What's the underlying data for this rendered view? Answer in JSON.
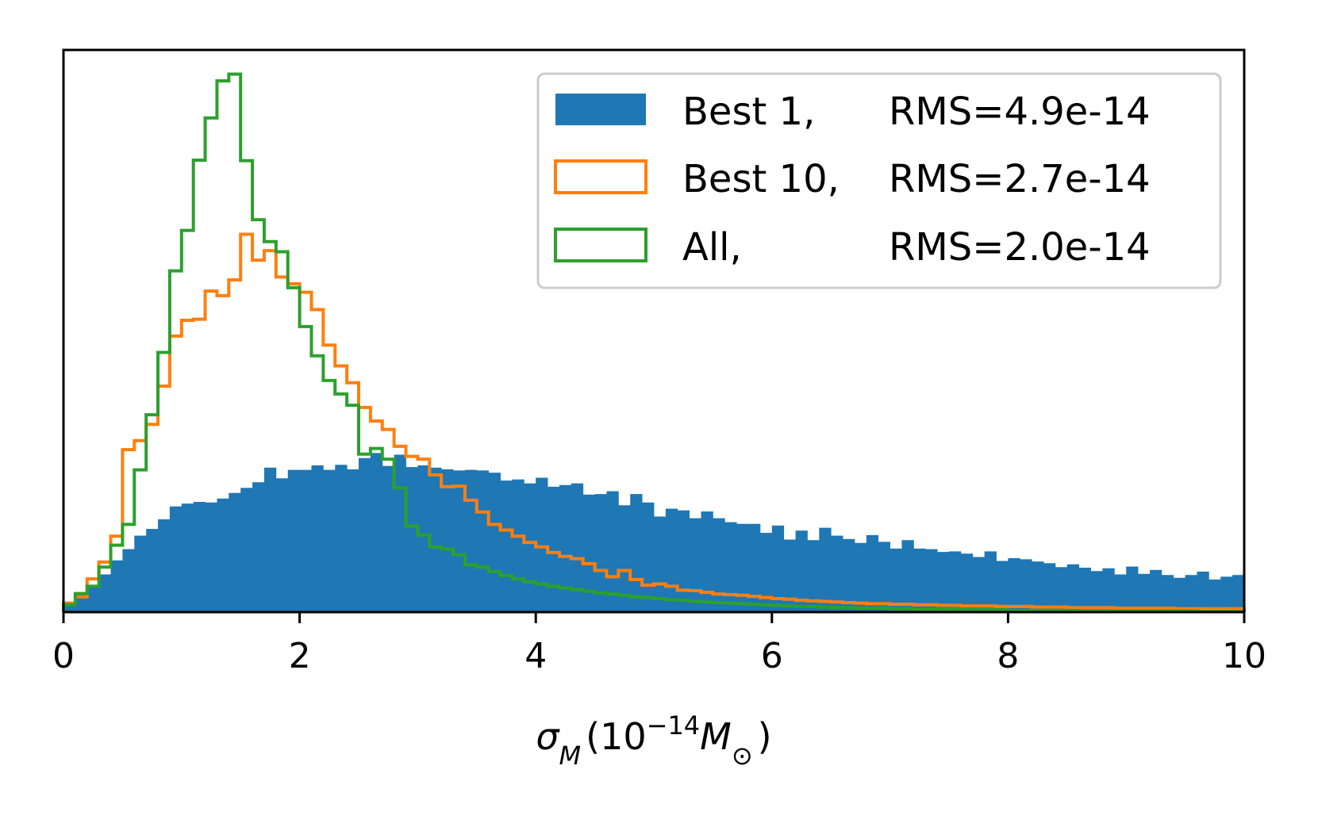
{
  "chart_data": {
    "type": "histogram",
    "xlabel": {
      "sigma": "σ",
      "sigma_sub": "M",
      "open": "(10",
      "exp": "−14",
      "mass": "M",
      "mass_sub": "⊙",
      "close": ")"
    },
    "xlim": [
      0,
      10
    ],
    "x_ticks": [
      "0",
      "2",
      "4",
      "6",
      "8",
      "10"
    ],
    "y_ticks_visible": false,
    "grid": false,
    "legend_position": "top-right",
    "bin_width": 0.1,
    "bin_start": 0,
    "ylim": [
      0,
      1.0
    ],
    "series": [
      {
        "name": "Best 1,   RMS=4.9e-14",
        "label_parts": [
          "Best 1,",
          "RMS=4.9e-14"
        ],
        "style": "filled",
        "color": "#1f77b4",
        "values": [
          0.016,
          0.032,
          0.047,
          0.067,
          0.092,
          0.112,
          0.136,
          0.148,
          0.165,
          0.188,
          0.193,
          0.196,
          0.195,
          0.202,
          0.212,
          0.221,
          0.231,
          0.257,
          0.238,
          0.253,
          0.253,
          0.261,
          0.253,
          0.262,
          0.254,
          0.274,
          0.283,
          0.26,
          0.28,
          0.258,
          0.261,
          0.257,
          0.254,
          0.252,
          0.253,
          0.252,
          0.248,
          0.234,
          0.236,
          0.229,
          0.239,
          0.223,
          0.226,
          0.229,
          0.209,
          0.21,
          0.215,
          0.19,
          0.21,
          0.195,
          0.17,
          0.184,
          0.181,
          0.167,
          0.179,
          0.167,
          0.16,
          0.157,
          0.157,
          0.141,
          0.154,
          0.129,
          0.145,
          0.128,
          0.15,
          0.136,
          0.13,
          0.123,
          0.137,
          0.125,
          0.113,
          0.128,
          0.113,
          0.112,
          0.107,
          0.108,
          0.104,
          0.098,
          0.108,
          0.091,
          0.096,
          0.094,
          0.09,
          0.087,
          0.08,
          0.085,
          0.079,
          0.073,
          0.078,
          0.067,
          0.081,
          0.068,
          0.075,
          0.066,
          0.061,
          0.066,
          0.072,
          0.058,
          0.063,
          0.066
        ]
      },
      {
        "name": "Best 10, RMS=2.7e-14",
        "label_parts": [
          "Best 10,",
          "RMS=2.7e-14"
        ],
        "style": "step",
        "color": "#ff7f0e",
        "values": [
          0.016,
          0.027,
          0.059,
          0.089,
          0.135,
          0.289,
          0.305,
          0.334,
          0.402,
          0.491,
          0.519,
          0.521,
          0.571,
          0.563,
          0.591,
          0.672,
          0.626,
          0.643,
          0.596,
          0.584,
          0.569,
          0.538,
          0.475,
          0.438,
          0.408,
          0.364,
          0.34,
          0.325,
          0.295,
          0.277,
          0.272,
          0.244,
          0.223,
          0.224,
          0.199,
          0.178,
          0.156,
          0.146,
          0.135,
          0.124,
          0.116,
          0.106,
          0.099,
          0.095,
          0.086,
          0.074,
          0.063,
          0.074,
          0.058,
          0.048,
          0.05,
          0.046,
          0.039,
          0.038,
          0.035,
          0.032,
          0.031,
          0.03,
          0.028,
          0.026,
          0.024,
          0.023,
          0.021,
          0.02,
          0.019,
          0.018,
          0.017,
          0.016,
          0.015,
          0.015,
          0.014,
          0.014,
          0.013,
          0.013,
          0.012,
          0.012,
          0.011,
          0.011,
          0.011,
          0.01,
          0.01,
          0.01,
          0.009,
          0.009,
          0.009,
          0.008,
          0.008,
          0.008,
          0.008,
          0.007,
          0.007,
          0.007,
          0.007,
          0.007,
          0.006,
          0.006,
          0.006,
          0.006,
          0.006,
          0.006
        ]
      },
      {
        "name": "All,        RMS=2.0e-14",
        "label_parts": [
          "All,",
          "RMS=2.0e-14"
        ],
        "style": "step",
        "color": "#2ca02c",
        "values": [
          0.013,
          0.033,
          0.046,
          0.08,
          0.119,
          0.156,
          0.253,
          0.351,
          0.462,
          0.607,
          0.679,
          0.804,
          0.879,
          0.945,
          0.957,
          0.803,
          0.698,
          0.659,
          0.641,
          0.577,
          0.508,
          0.456,
          0.412,
          0.388,
          0.368,
          0.281,
          0.291,
          0.272,
          0.221,
          0.153,
          0.137,
          0.116,
          0.112,
          0.102,
          0.084,
          0.08,
          0.072,
          0.065,
          0.059,
          0.054,
          0.05,
          0.046,
          0.043,
          0.04,
          0.037,
          0.034,
          0.032,
          0.03,
          0.027,
          0.026,
          0.024,
          0.022,
          0.021,
          0.019,
          0.018,
          0.017,
          0.016,
          0.015,
          0.014,
          0.013,
          0.012,
          0.011,
          0.01,
          0.01,
          0.009,
          0.008,
          0.008,
          0.007,
          0.007,
          0.007,
          0.006,
          0.006,
          0.005,
          0.005,
          0.005,
          0.005,
          0.004,
          0.004,
          0.004,
          0.004,
          0.003,
          0.003,
          0.003,
          0.003,
          0.003,
          0.003,
          0.002,
          0.002,
          0.002,
          0.002,
          0.002,
          0.002,
          0.002,
          0.002,
          0.002,
          0.002,
          0.001,
          0.001,
          0.001,
          0.001
        ]
      }
    ]
  }
}
